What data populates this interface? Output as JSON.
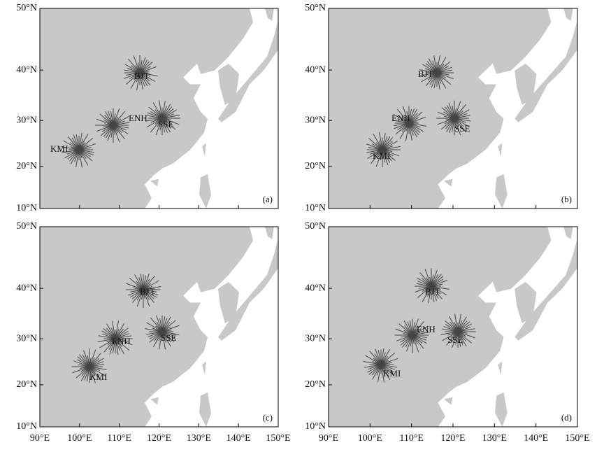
{
  "panels": [
    {
      "label": "(a)",
      "stations": [
        "BJT",
        "ENH",
        "SSE",
        "KMI"
      ]
    },
    {
      "label": "(b)",
      "stations": [
        "BJT",
        "ENH",
        "SSE",
        "KMI"
      ]
    },
    {
      "label": "(c)",
      "stations": [
        "BJT",
        "ENH",
        "SSE",
        "KMI"
      ]
    },
    {
      "label": "(d)",
      "stations": [
        "BJT",
        "ENH",
        "SSE",
        "KMI"
      ]
    }
  ],
  "y_axis_labels": [
    "50°N",
    "40°N",
    "30°N",
    "20°N",
    "10°N"
  ],
  "x_axis_labels": [
    "90°E",
    "100°E",
    "110°E",
    "120°E",
    "130°E",
    "140°E",
    "150°E"
  ]
}
